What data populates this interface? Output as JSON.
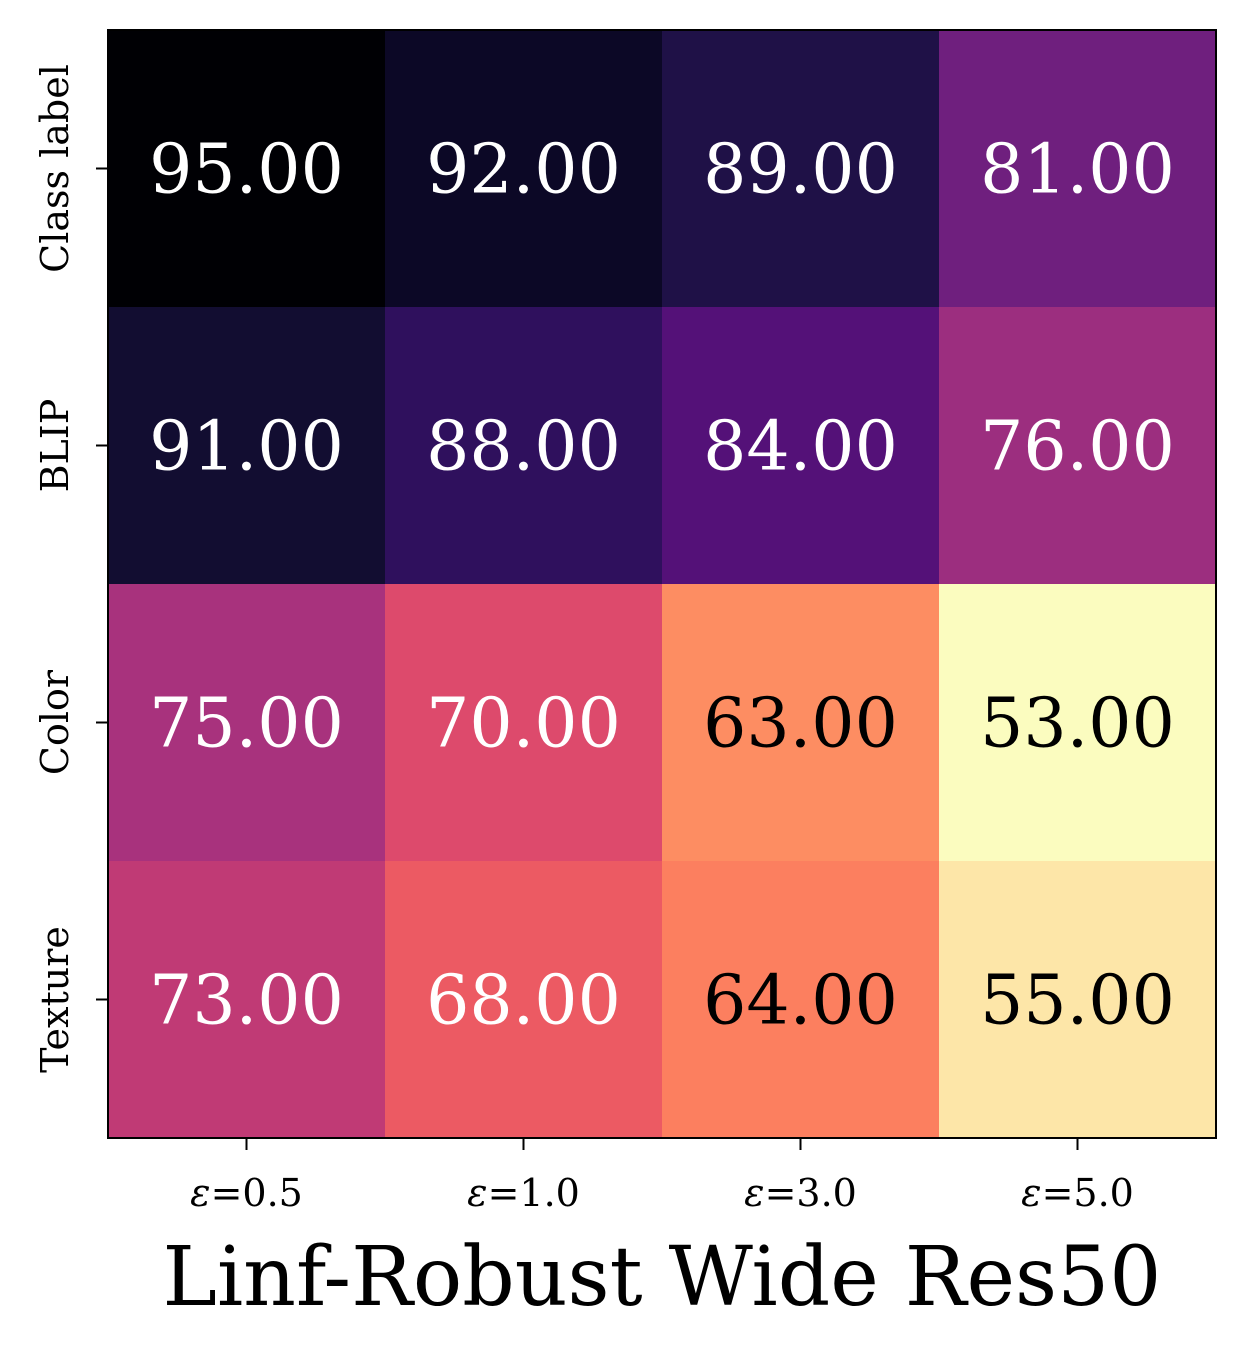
{
  "chart_data": {
    "type": "heatmap",
    "title": "Linf-Robust Wide Res50",
    "colormap": "magma_r",
    "x_categories": [
      "ε=0.5",
      "ε=1.0",
      "ε=3.0",
      "ε=5.0"
    ],
    "y_categories": [
      "Class label",
      "BLIP",
      "Color",
      "Texture"
    ],
    "values": [
      [
        95.0,
        92.0,
        89.0,
        81.0
      ],
      [
        91.0,
        88.0,
        84.0,
        76.0
      ],
      [
        75.0,
        70.0,
        63.0,
        53.0
      ],
      [
        73.0,
        68.0,
        64.0,
        55.0
      ]
    ],
    "cell_colors": [
      [
        "#000004",
        "#0c0826",
        "#1f1147",
        "#6f1f7e"
      ],
      [
        "#120d31",
        "#2f105d",
        "#541178",
        "#9c2e7f"
      ],
      [
        "#a8327d",
        "#dd4a6c",
        "#fd8d62",
        "#fbfcbf"
      ],
      [
        "#c03a75",
        "#ec5a63",
        "#fc7f5f",
        "#fde6a8"
      ]
    ],
    "label_colors": [
      [
        "#ffffff",
        "#ffffff",
        "#ffffff",
        "#ffffff"
      ],
      [
        "#ffffff",
        "#ffffff",
        "#ffffff",
        "#ffffff"
      ],
      [
        "#ffffff",
        "#ffffff",
        "#000000",
        "#000000"
      ],
      [
        "#ffffff",
        "#ffffff",
        "#000000",
        "#000000"
      ]
    ],
    "value_format": "2 decimals"
  }
}
